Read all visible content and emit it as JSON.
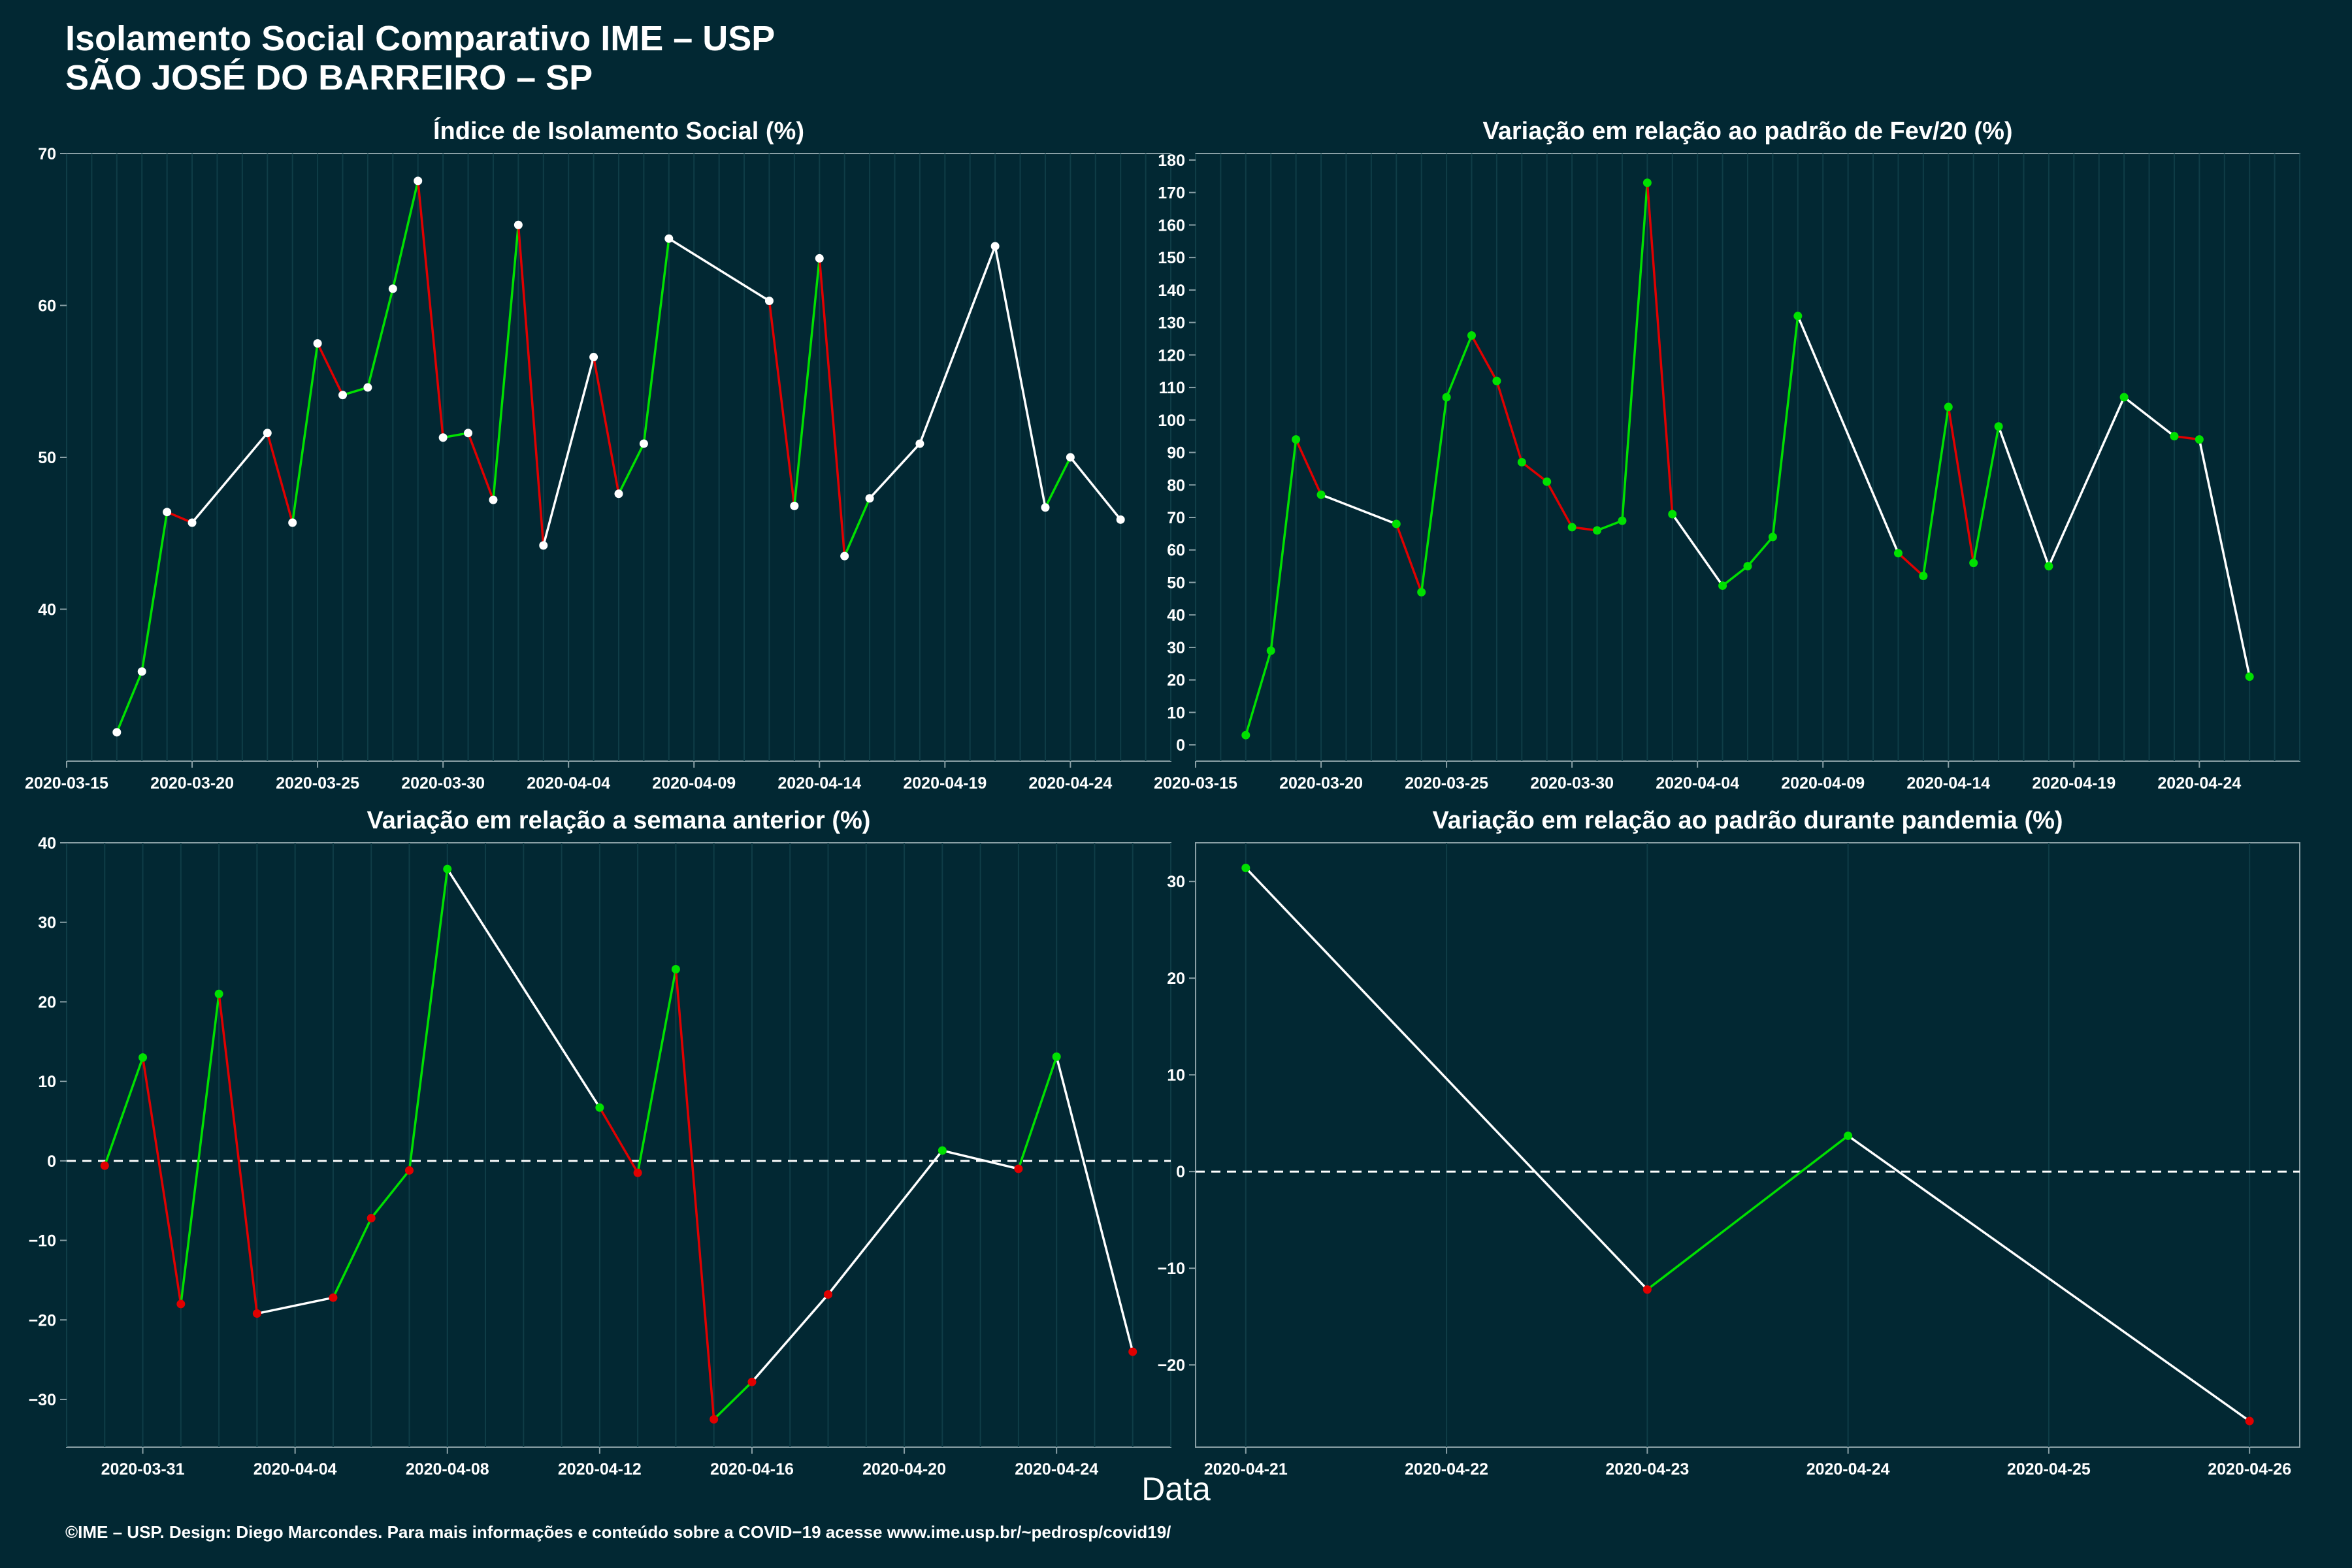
{
  "header": {
    "title": "Isolamento Social Comparativo IME – USP",
    "subtitle": "SÃO JOSÉ DO BARREIRO – SP"
  },
  "x_axis_label": "Data",
  "footer": "©IME – USP. Design: Diego Marcondes. Para mais informações e conteúdo sobre a COVID−19 acesse www.ime.usp.br/~pedrosp/covid19/",
  "colors": {
    "background": "#022833",
    "panel": "#022833",
    "line_default": "#ffffff",
    "increase": "#00e000",
    "decrease": "#e00000",
    "grid": "#0f3d47",
    "axis": "#8aa0a6"
  },
  "chart_data": [
    {
      "type": "line",
      "title": "Índice de Isolamento Social (%)",
      "x_type": "date",
      "xlim": [
        "2020-03-15",
        "2020-04-28"
      ],
      "x_ticks": [
        "2020-03-15",
        "2020-03-20",
        "2020-03-25",
        "2020-03-30",
        "2020-04-04",
        "2020-04-09",
        "2020-04-14",
        "2020-04-19",
        "2020-04-24"
      ],
      "ylim": [
        30,
        70
      ],
      "y_ticks": [
        40,
        50,
        60,
        70
      ],
      "grid": true,
      "series": [
        {
          "x": [
            "2020-03-17",
            "2020-03-18",
            "2020-03-19",
            "2020-03-20",
            "2020-03-23",
            "2020-03-24",
            "2020-03-25",
            "2020-03-26",
            "2020-03-27",
            "2020-03-28",
            "2020-03-29",
            "2020-03-30",
            "2020-03-31",
            "2020-04-01",
            "2020-04-02",
            "2020-04-03",
            "2020-04-05",
            "2020-04-06",
            "2020-04-07",
            "2020-04-08",
            "2020-04-12",
            "2020-04-13",
            "2020-04-14",
            "2020-04-15",
            "2020-04-16",
            "2020-04-18",
            "2020-04-21",
            "2020-04-23",
            "2020-04-24",
            "2020-04-26"
          ],
          "values": [
            31.9,
            35.9,
            46.4,
            45.7,
            51.6,
            45.7,
            57.5,
            54.1,
            54.6,
            61.1,
            68.2,
            51.3,
            51.6,
            47.2,
            65.3,
            44.2,
            56.6,
            47.6,
            50.9,
            64.4,
            60.3,
            46.8,
            63.1,
            43.5,
            47.3,
            50.9,
            63.9,
            46.7,
            50.0,
            45.9
          ]
        }
      ]
    },
    {
      "type": "line",
      "title": "Variação em relação ao padrão de Fev/20 (%)",
      "x_type": "date",
      "xlim": [
        "2020-03-15",
        "2020-04-28"
      ],
      "x_ticks": [
        "2020-03-15",
        "2020-03-20",
        "2020-03-25",
        "2020-03-30",
        "2020-04-04",
        "2020-04-09",
        "2020-04-14",
        "2020-04-19",
        "2020-04-24"
      ],
      "ylim": [
        -5,
        182
      ],
      "y_ticks": [
        0,
        10,
        20,
        30,
        40,
        50,
        60,
        70,
        80,
        90,
        100,
        110,
        120,
        130,
        140,
        150,
        160,
        170,
        180
      ],
      "grid": true,
      "series": [
        {
          "x": [
            "2020-03-17",
            "2020-03-18",
            "2020-03-19",
            "2020-03-20",
            "2020-03-23",
            "2020-03-24",
            "2020-03-25",
            "2020-03-26",
            "2020-03-27",
            "2020-03-28",
            "2020-03-29",
            "2020-03-30",
            "2020-03-31",
            "2020-04-01",
            "2020-04-02",
            "2020-04-03",
            "2020-04-05",
            "2020-04-06",
            "2020-04-07",
            "2020-04-08",
            "2020-04-12",
            "2020-04-13",
            "2020-04-14",
            "2020-04-15",
            "2020-04-16",
            "2020-04-18",
            "2020-04-21",
            "2020-04-23",
            "2020-04-24",
            "2020-04-26"
          ],
          "values": [
            3,
            29,
            94,
            77,
            68,
            47,
            107,
            126,
            112,
            87,
            81,
            67,
            66,
            69,
            173,
            71,
            49,
            55,
            64,
            132,
            59,
            52,
            104,
            56,
            98,
            55,
            107,
            95,
            94,
            21
          ]
        }
      ]
    },
    {
      "type": "line",
      "title": "Variação em relação a semana anterior (%)",
      "x_type": "date",
      "xlim": [
        "2020-03-29",
        "2020-04-27"
      ],
      "x_ticks": [
        "2020-03-31",
        "2020-04-04",
        "2020-04-08",
        "2020-04-12",
        "2020-04-16",
        "2020-04-20",
        "2020-04-24"
      ],
      "ylim": [
        -36,
        40
      ],
      "y_ticks": [
        -30,
        -20,
        -10,
        0,
        10,
        20,
        30,
        40
      ],
      "reference_line": 0,
      "grid": true,
      "series": [
        {
          "x": [
            "2020-03-30",
            "2020-03-31",
            "2020-04-01",
            "2020-04-02",
            "2020-04-03",
            "2020-04-05",
            "2020-04-06",
            "2020-04-07",
            "2020-04-08",
            "2020-04-12",
            "2020-04-13",
            "2020-04-14",
            "2020-04-15",
            "2020-04-16",
            "2020-04-18",
            "2020-04-21",
            "2020-04-23",
            "2020-04-24",
            "2020-04-26"
          ],
          "values": [
            -0.6,
            13.0,
            -18.0,
            21.0,
            -19.2,
            -17.2,
            -7.2,
            -1.2,
            36.7,
            6.7,
            -1.5,
            24.1,
            -32.5,
            -27.8,
            -16.8,
            1.3,
            -1.0,
            13.1,
            -24.0
          ]
        }
      ]
    },
    {
      "type": "line",
      "title": "Variação em relação ao padrão durante pandemia (%)",
      "x_type": "date",
      "xlim": [
        "2020-04-20T18:00",
        "2020-04-26T06:00"
      ],
      "x_ticks": [
        "2020-04-21",
        "2020-04-22",
        "2020-04-23",
        "2020-04-24",
        "2020-04-25",
        "2020-04-26"
      ],
      "ylim": [
        -28.5,
        34
      ],
      "y_ticks": [
        -20,
        -10,
        0,
        10,
        20,
        30
      ],
      "reference_line": 0,
      "grid": true,
      "series": [
        {
          "x": [
            "2020-04-21",
            "2020-04-23",
            "2020-04-24",
            "2020-04-26"
          ],
          "values": [
            31.4,
            -12.2,
            3.7,
            -25.8
          ]
        }
      ]
    }
  ]
}
